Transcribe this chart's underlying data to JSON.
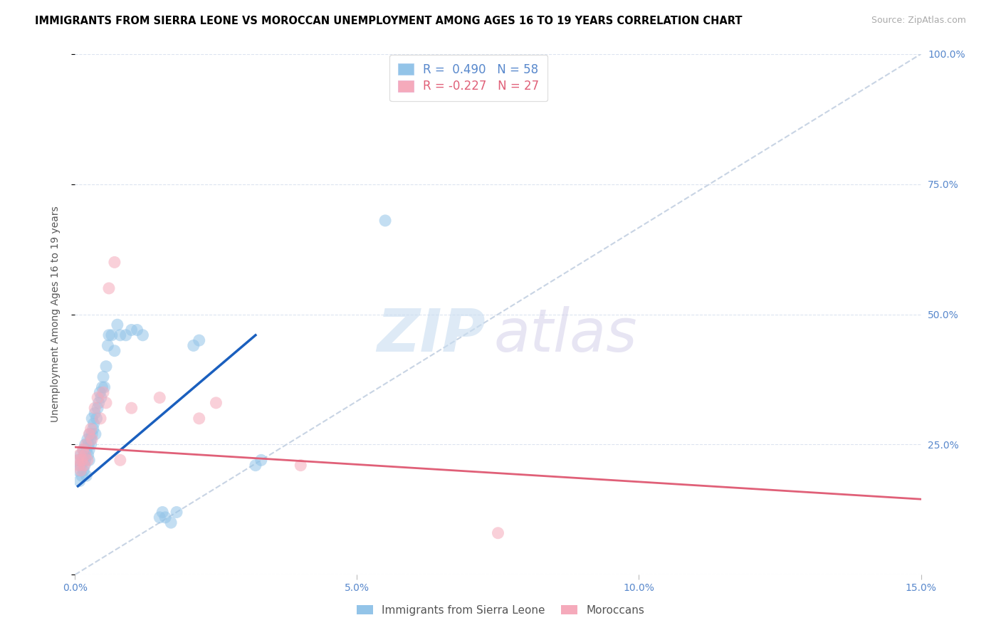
{
  "title": "IMMIGRANTS FROM SIERRA LEONE VS MOROCCAN UNEMPLOYMENT AMONG AGES 16 TO 19 YEARS CORRELATION CHART",
  "source": "Source: ZipAtlas.com",
  "ylabel": "Unemployment Among Ages 16 to 19 years",
  "blue_label": "Immigrants from Sierra Leone",
  "pink_label": "Moroccans",
  "blue_R": "0.490",
  "blue_N": "58",
  "pink_R": "-0.227",
  "pink_N": "27",
  "blue_color": "#93c4e8",
  "pink_color": "#f5aabb",
  "blue_trend_color": "#1a5fbe",
  "pink_trend_color": "#e06078",
  "diagonal_color": "#c8d4e4",
  "axis_color": "#5888cc",
  "grid_color": "#dce4f0",
  "xlim": [
    0.0,
    15.0
  ],
  "ylim": [
    0.0,
    100.0
  ],
  "xticks": [
    0.0,
    5.0,
    10.0,
    15.0
  ],
  "xticklabels": [
    "0.0%",
    "5.0%",
    "10.0%",
    "15.0%"
  ],
  "yticks": [
    0,
    25,
    50,
    75,
    100
  ],
  "yticklabels_right": [
    "",
    "25.0%",
    "50.0%",
    "75.0%",
    "100.0%"
  ],
  "sierra_x": [
    0.05,
    0.07,
    0.08,
    0.1,
    0.1,
    0.12,
    0.13,
    0.15,
    0.15,
    0.16,
    0.17,
    0.18,
    0.18,
    0.2,
    0.2,
    0.22,
    0.23,
    0.24,
    0.25,
    0.25,
    0.26,
    0.28,
    0.28,
    0.3,
    0.3,
    0.32,
    0.33,
    0.35,
    0.36,
    0.38,
    0.4,
    0.42,
    0.44,
    0.46,
    0.48,
    0.5,
    0.52,
    0.55,
    0.58,
    0.6,
    0.65,
    0.7,
    0.75,
    0.8,
    0.9,
    1.0,
    1.1,
    1.2,
    1.5,
    1.55,
    1.6,
    1.7,
    1.8,
    2.1,
    2.2,
    3.2,
    3.3,
    5.5
  ],
  "sierra_y": [
    20.0,
    22.0,
    18.0,
    21.0,
    23.0,
    19.0,
    22.0,
    20.0,
    24.0,
    23.0,
    21.0,
    25.0,
    22.0,
    24.0,
    19.0,
    26.0,
    23.0,
    25.0,
    22.0,
    24.0,
    27.0,
    26.0,
    25.0,
    30.0,
    27.0,
    28.0,
    29.0,
    31.0,
    27.0,
    30.0,
    32.0,
    33.0,
    35.0,
    34.0,
    36.0,
    38.0,
    36.0,
    40.0,
    44.0,
    46.0,
    46.0,
    43.0,
    48.0,
    46.0,
    46.0,
    47.0,
    47.0,
    46.0,
    11.0,
    12.0,
    11.0,
    10.0,
    12.0,
    44.0,
    45.0,
    21.0,
    22.0,
    68.0
  ],
  "moroccan_x": [
    0.05,
    0.07,
    0.08,
    0.1,
    0.12,
    0.14,
    0.16,
    0.18,
    0.2,
    0.22,
    0.25,
    0.28,
    0.3,
    0.35,
    0.4,
    0.45,
    0.5,
    0.55,
    0.6,
    0.7,
    0.8,
    1.0,
    1.5,
    2.2,
    2.5,
    4.0,
    7.5
  ],
  "moroccan_y": [
    22.0,
    21.0,
    23.0,
    20.0,
    22.0,
    24.0,
    21.0,
    23.0,
    25.0,
    22.0,
    27.0,
    28.0,
    26.0,
    32.0,
    34.0,
    30.0,
    35.0,
    33.0,
    55.0,
    60.0,
    22.0,
    32.0,
    34.0,
    30.0,
    33.0,
    21.0,
    8.0
  ],
  "blue_trend_x": [
    0.05,
    3.2
  ],
  "blue_trend_y": [
    17.0,
    46.0
  ],
  "pink_trend_x": [
    0.0,
    15.0
  ],
  "pink_trend_y": [
    24.5,
    14.5
  ],
  "watermark_zip": "ZIP",
  "watermark_atlas": "atlas"
}
